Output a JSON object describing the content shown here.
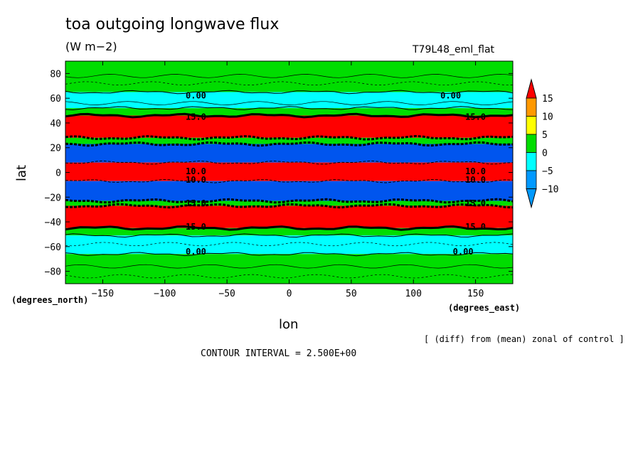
{
  "chart_data": {
    "type": "heatmap",
    "title": "toa outgoing longwave flux",
    "units": "(W m−2)",
    "experiment": "T79L48_eml_flat",
    "xlabel": "lon",
    "ylabel": "lat",
    "x_unit_label": "(degrees_east)",
    "y_unit_label": "(degrees_north)",
    "xlim": [
      -180,
      180
    ],
    "ylim": [
      -90,
      90
    ],
    "x_ticks": [
      -150,
      -100,
      -50,
      0,
      50,
      100,
      150
    ],
    "y_ticks": [
      80,
      60,
      40,
      20,
      0,
      -20,
      -40,
      -60,
      -80
    ],
    "colorbar_levels": [
      15,
      10,
      5,
      0,
      -5,
      -10
    ],
    "colorbar_labels": [
      "15",
      "10",
      "5",
      "0",
      "−5",
      "−10"
    ],
    "colors": {
      "above_15": "#ff0000",
      "10_15": "#ff9900",
      "5_10": "#ffff00",
      "0_5": "#00dd00",
      "m5_0": "#00ffff",
      "m10_m5": "#0099ff",
      "below_m10": "#0055ee"
    },
    "bands": [
      {
        "lat_min": 65,
        "lat_max": 90,
        "value_class": "0_5"
      },
      {
        "lat_min": 52,
        "lat_max": 65,
        "value_class": "m5_0"
      },
      {
        "lat_min": 46,
        "lat_max": 52,
        "value_class": "0_5"
      },
      {
        "lat_min": 28,
        "lat_max": 46,
        "value_class": "above_15"
      },
      {
        "lat_min": 23,
        "lat_max": 28,
        "value_class": "0_5"
      },
      {
        "lat_min": 8,
        "lat_max": 23,
        "value_class": "below_m10"
      },
      {
        "lat_min": -7,
        "lat_max": 8,
        "value_class": "above_15"
      },
      {
        "lat_min": -23,
        "lat_max": -7,
        "value_class": "below_m10"
      },
      {
        "lat_min": -27,
        "lat_max": -23,
        "value_class": "0_5"
      },
      {
        "lat_min": -45,
        "lat_max": -27,
        "value_class": "above_15"
      },
      {
        "lat_min": -51,
        "lat_max": -45,
        "value_class": "0_5"
      },
      {
        "lat_min": -66,
        "lat_max": -51,
        "value_class": "m5_0"
      },
      {
        "lat_min": -90,
        "lat_max": -66,
        "value_class": "0_5"
      }
    ],
    "contour_labels": [
      {
        "text": "0.00",
        "lon": -75,
        "lat": 62
      },
      {
        "text": "0.00",
        "lon": 130,
        "lat": 62
      },
      {
        "text": "0.00",
        "lon": -75,
        "lat": -64
      },
      {
        "text": "0.00",
        "lon": 140,
        "lat": -64
      },
      {
        "text": "15.0",
        "lon": -75,
        "lat": 45
      },
      {
        "text": "15.0",
        "lon": 150,
        "lat": 45
      },
      {
        "text": "15.0",
        "lon": -75,
        "lat": -25
      },
      {
        "text": "15.0",
        "lon": 150,
        "lat": -25
      },
      {
        "text": "10.0",
        "lon": -75,
        "lat": 1
      },
      {
        "text": "10.0",
        "lon": 150,
        "lat": 1
      },
      {
        "text": "10.0",
        "lon": -75,
        "lat": -6
      },
      {
        "text": "10.0",
        "lon": 150,
        "lat": -6
      },
      {
        "text": "15.0",
        "lon": -75,
        "lat": -44
      },
      {
        "text": "15.0",
        "lon": 150,
        "lat": -44
      }
    ],
    "grid": false,
    "legend": "right"
  },
  "annotation": "[ (diff) from (mean) zonal of control ]",
  "contour_interval": "CONTOUR INTERVAL = 2.500E+00"
}
